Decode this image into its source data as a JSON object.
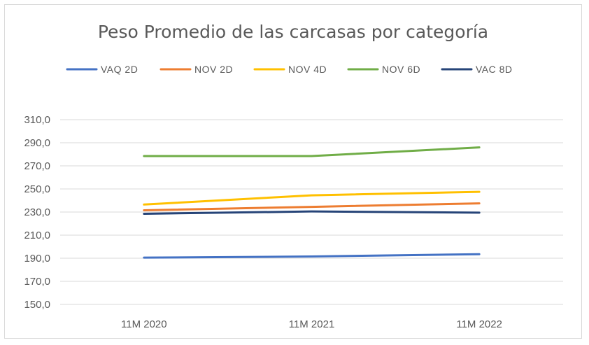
{
  "chart_data": {
    "type": "line",
    "title": "Peso Promedio de las carcasas por categoría",
    "xlabel": "",
    "ylabel": "",
    "categories": [
      "11M 2020",
      "11M 2021",
      "11M 2022"
    ],
    "ylim": [
      150,
      310
    ],
    "yticks": [
      "150,0",
      "170,0",
      "190,0",
      "210,0",
      "230,0",
      "250,0",
      "270,0",
      "290,0",
      "310,0"
    ],
    "grid": true,
    "legend": "top",
    "series": [
      {
        "name": "VAQ 2D",
        "color": "#4472c4",
        "values": [
          190.5,
          191.5,
          193.5
        ]
      },
      {
        "name": "NOV 2D",
        "color": "#ed7d31",
        "values": [
          231.5,
          234.5,
          237.5
        ]
      },
      {
        "name": "NOV 4D",
        "color": "#ffc000",
        "values": [
          236.5,
          244.5,
          247.5
        ]
      },
      {
        "name": "NOV 6D",
        "color": "#70ad47",
        "values": [
          278.5,
          278.5,
          286.0
        ]
      },
      {
        "name": "VAC 8D",
        "color": "#264478",
        "values": [
          228.5,
          230.5,
          229.5
        ]
      }
    ]
  }
}
